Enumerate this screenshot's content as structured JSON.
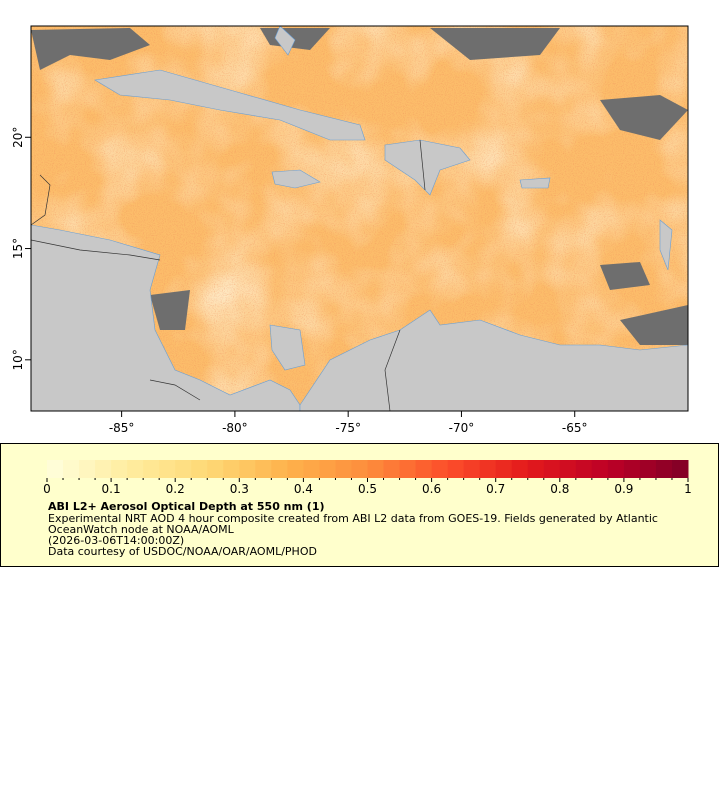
{
  "map": {
    "xlim": [
      -89,
      -60
    ],
    "ylim": [
      7.7,
      25
    ],
    "xticks": [
      {
        "value": -85,
        "label": "-85°"
      },
      {
        "value": -80,
        "label": "-80°"
      },
      {
        "value": -75,
        "label": "-75°"
      },
      {
        "value": -70,
        "label": "-70°"
      },
      {
        "value": -65,
        "label": "-65°"
      }
    ],
    "yticks": [
      {
        "value": 10,
        "label": "10°"
      },
      {
        "value": 15,
        "label": "15°"
      },
      {
        "value": 20,
        "label": "20°"
      }
    ]
  },
  "legend": {
    "colorbar_lim": [
      0,
      1
    ],
    "colorbar_ticks": [
      0,
      0.1,
      0.2,
      0.3,
      0.4,
      0.5,
      0.6,
      0.7,
      0.8,
      0.9,
      1
    ],
    "colormap": [
      "#ffffdd",
      "#ffeda0",
      "#fed976",
      "#feb24c",
      "#fd8d3c",
      "#fc4e2a",
      "#e31a1c",
      "#bd0026",
      "#800026"
    ],
    "title": "ABI L2+ Aerosol Optical Depth at 550 nm (1)",
    "lines": [
      "Experimental NRT AOD 4 hour composite created from ABI L2 data from GOES-19. Fields generated by Atlantic",
      "OceanWatch node at NOAA/AOML",
      "(2026-03-06T14:00:00Z)",
      "Data courtesy of USDOC/NOAA/OAR/AOML/PHOD"
    ]
  }
}
